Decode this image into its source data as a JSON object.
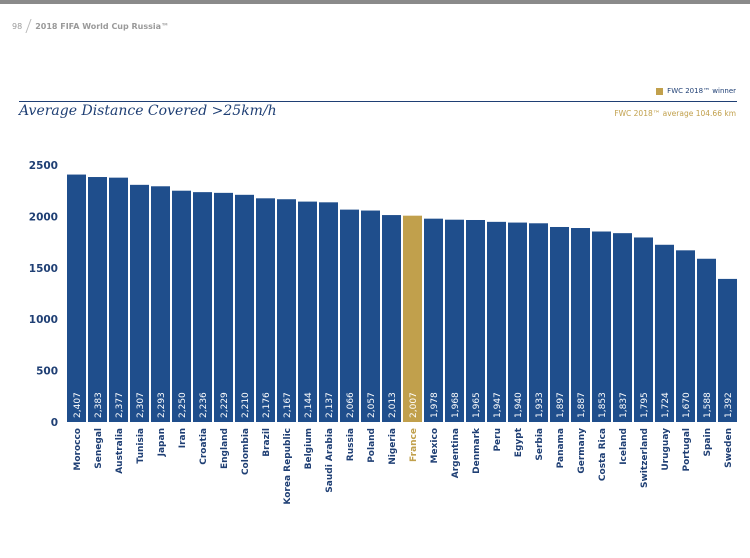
{
  "page": {
    "number": "98",
    "publication": "2018 FIFA World Cup Russia™"
  },
  "legend": {
    "label": "FWC 2018™ winner",
    "color": "#c1a04c"
  },
  "colors": {
    "bar": "#1f4e8c",
    "highlight": "#c1a04c",
    "axis_text": "#1f3f74"
  },
  "chart_data": {
    "type": "bar",
    "title": "Average Distance Covered >25km/h",
    "note": "FWC 2018™ average 104.66 km",
    "xlabel": "",
    "ylabel": "",
    "ylim": [
      0,
      2500
    ],
    "yticks": [
      0,
      500,
      1000,
      1500,
      2000,
      2500
    ],
    "grid": false,
    "highlight": "France",
    "categories": [
      "Morocco",
      "Senegal",
      "Australia",
      "Tunisia",
      "Japan",
      "Iran",
      "Croatia",
      "England",
      "Colombia",
      "Brazil",
      "Korea Republic",
      "Belgium",
      "Saudi Arabia",
      "Russia",
      "Poland",
      "Nigeria",
      "France",
      "Mexico",
      "Argentina",
      "Denmark",
      "Peru",
      "Egypt",
      "Serbia",
      "Panama",
      "Germany",
      "Costa Rica",
      "Iceland",
      "Switzerland",
      "Uruguay",
      "Portugal",
      "Spain",
      "Sweden"
    ],
    "values": [
      2407,
      2383,
      2377,
      2307,
      2293,
      2250,
      2236,
      2229,
      2210,
      2176,
      2167,
      2144,
      2137,
      2066,
      2057,
      2013,
      2007,
      1978,
      1968,
      1965,
      1947,
      1940,
      1933,
      1897,
      1887,
      1853,
      1837,
      1795,
      1724,
      1670,
      1588,
      1392
    ],
    "value_labels": [
      "2,407",
      "2,383",
      "2,377",
      "2,307",
      "2,293",
      "2,250",
      "2,236",
      "2,229",
      "2,210",
      "2,176",
      "2,167",
      "2,144",
      "2,137",
      "2,066",
      "2,057",
      "2,013",
      "2,007",
      "1,978",
      "1,968",
      "1,965",
      "1,947",
      "1,940",
      "1,933",
      "1,897",
      "1,887",
      "1,853",
      "1,837",
      "1,795",
      "1,724",
      "1,670",
      "1,588",
      "1,392"
    ]
  }
}
